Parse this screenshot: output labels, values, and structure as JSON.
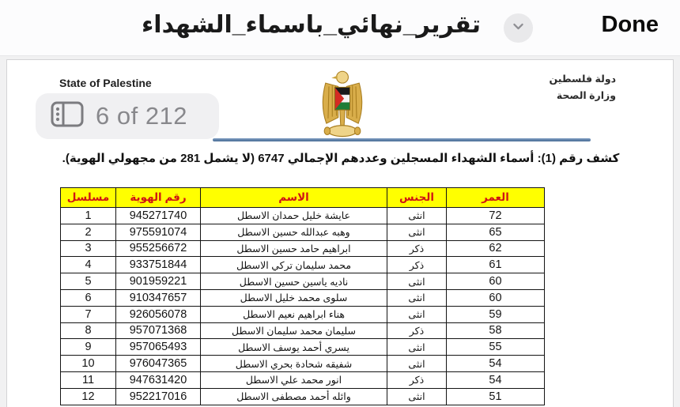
{
  "toolbar": {
    "title": "تقرير_نهائي_باسماء_الشهداء",
    "done_label": "Done"
  },
  "document": {
    "header": {
      "state_en": "State of Palestine",
      "page_indicator": "6 of 212",
      "ministry_line1": "دولة فلسطين",
      "ministry_line2": "وزارة الصحة"
    },
    "caption": "كشف رقم (1): أسماء الشهداء المسجلين وعددهم الإجمالي 6747 (لا يشمل 281 من مجهولي الهوية).",
    "table": {
      "headers": [
        "مسلسل",
        "رقم الهوية",
        "الاسم",
        "الجنس",
        "العمر"
      ],
      "rows": [
        [
          "1",
          "945271740",
          "عايشة خليل حمدان الاسطل",
          "انثى",
          "72"
        ],
        [
          "2",
          "975591074",
          "وهبه عبدالله حسين الاسطل",
          "انثى",
          "65"
        ],
        [
          "3",
          "955256672",
          "ابراهيم حامد حسين الاسطل",
          "ذكر",
          "62"
        ],
        [
          "4",
          "933751844",
          "محمد سليمان تركي الاسطل",
          "ذكر",
          "61"
        ],
        [
          "5",
          "901959221",
          "ناديه ياسين حسين الاسطل",
          "انثى",
          "60"
        ],
        [
          "6",
          "910347657",
          "سلوى محمد خليل الاسطل",
          "انثى",
          "60"
        ],
        [
          "7",
          "926056078",
          "هناء ابراهيم نعيم الاسطل",
          "انثى",
          "59"
        ],
        [
          "8",
          "957071368",
          "سليمان محمد سليمان الاسطل",
          "ذكر",
          "58"
        ],
        [
          "9",
          "957065493",
          "يسري أحمد يوسف الاسطل",
          "انثى",
          "55"
        ],
        [
          "10",
          "976047365",
          "شفيقه شحادة بحري الاسطل",
          "انثى",
          "54"
        ],
        [
          "11",
          "947631420",
          "انور محمد علي الاسطل",
          "ذكر",
          "54"
        ],
        [
          "12",
          "952217016",
          "وائله أحمد مصطفى الاسطل",
          "انثى",
          "51"
        ]
      ]
    },
    "colors": {
      "table_header_bg": "#ffff00",
      "table_header_text": "#d01414",
      "divider_line": "#5b7ea8"
    },
    "icons": {
      "sidebar_icon": "thumbnail-sidebar",
      "chevron_icon": "chevron-down",
      "emblem": "palestine-coat-of-arms"
    }
  }
}
